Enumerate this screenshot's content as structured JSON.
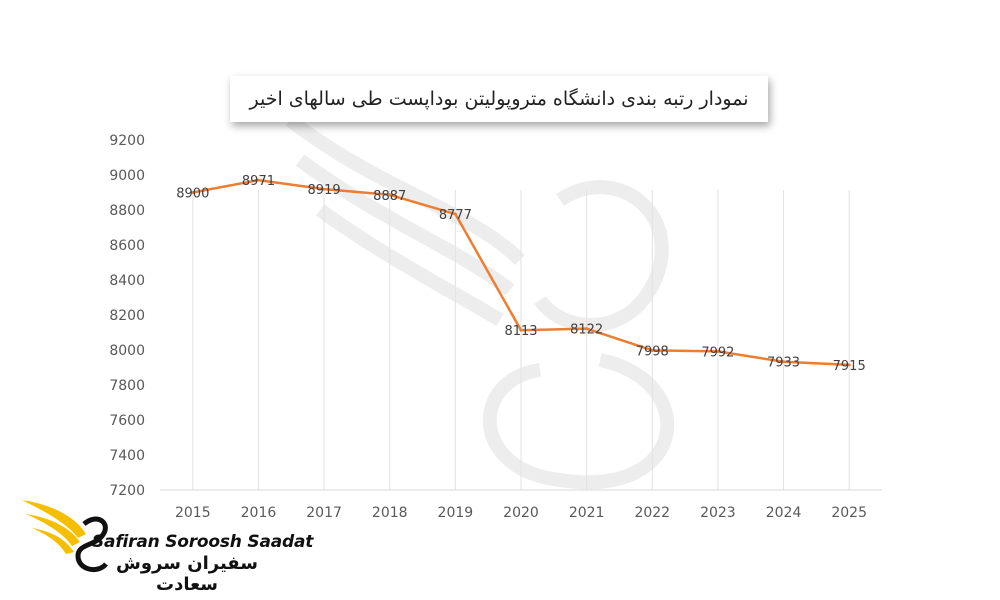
{
  "chart_data": {
    "type": "line",
    "title": "نمودار رتبه بندی دانشگاه متروپولیتن بوداپست طی سالهای اخیر",
    "categories": [
      "2015",
      "2016",
      "2017",
      "2018",
      "2019",
      "2020",
      "2021",
      "2022",
      "2023",
      "2024",
      "2025"
    ],
    "series": [
      {
        "values": [
          8900,
          8971,
          8919,
          8887,
          8777,
          8113,
          8122,
          7998,
          7992,
          7933,
          7915
        ]
      }
    ],
    "ylim": [
      7200,
      9200
    ],
    "yticks": [
      7200,
      7400,
      7600,
      7800,
      8000,
      8200,
      8400,
      8600,
      8800,
      9000,
      9200
    ],
    "grid": "vertical",
    "data_labels": true,
    "line_color": "#ED7D31"
  },
  "logo": {
    "name_en": "Safiran Soroosh Saadat",
    "name_fa": "سفیران سروش سعادت",
    "accent": "#F6BE00"
  }
}
